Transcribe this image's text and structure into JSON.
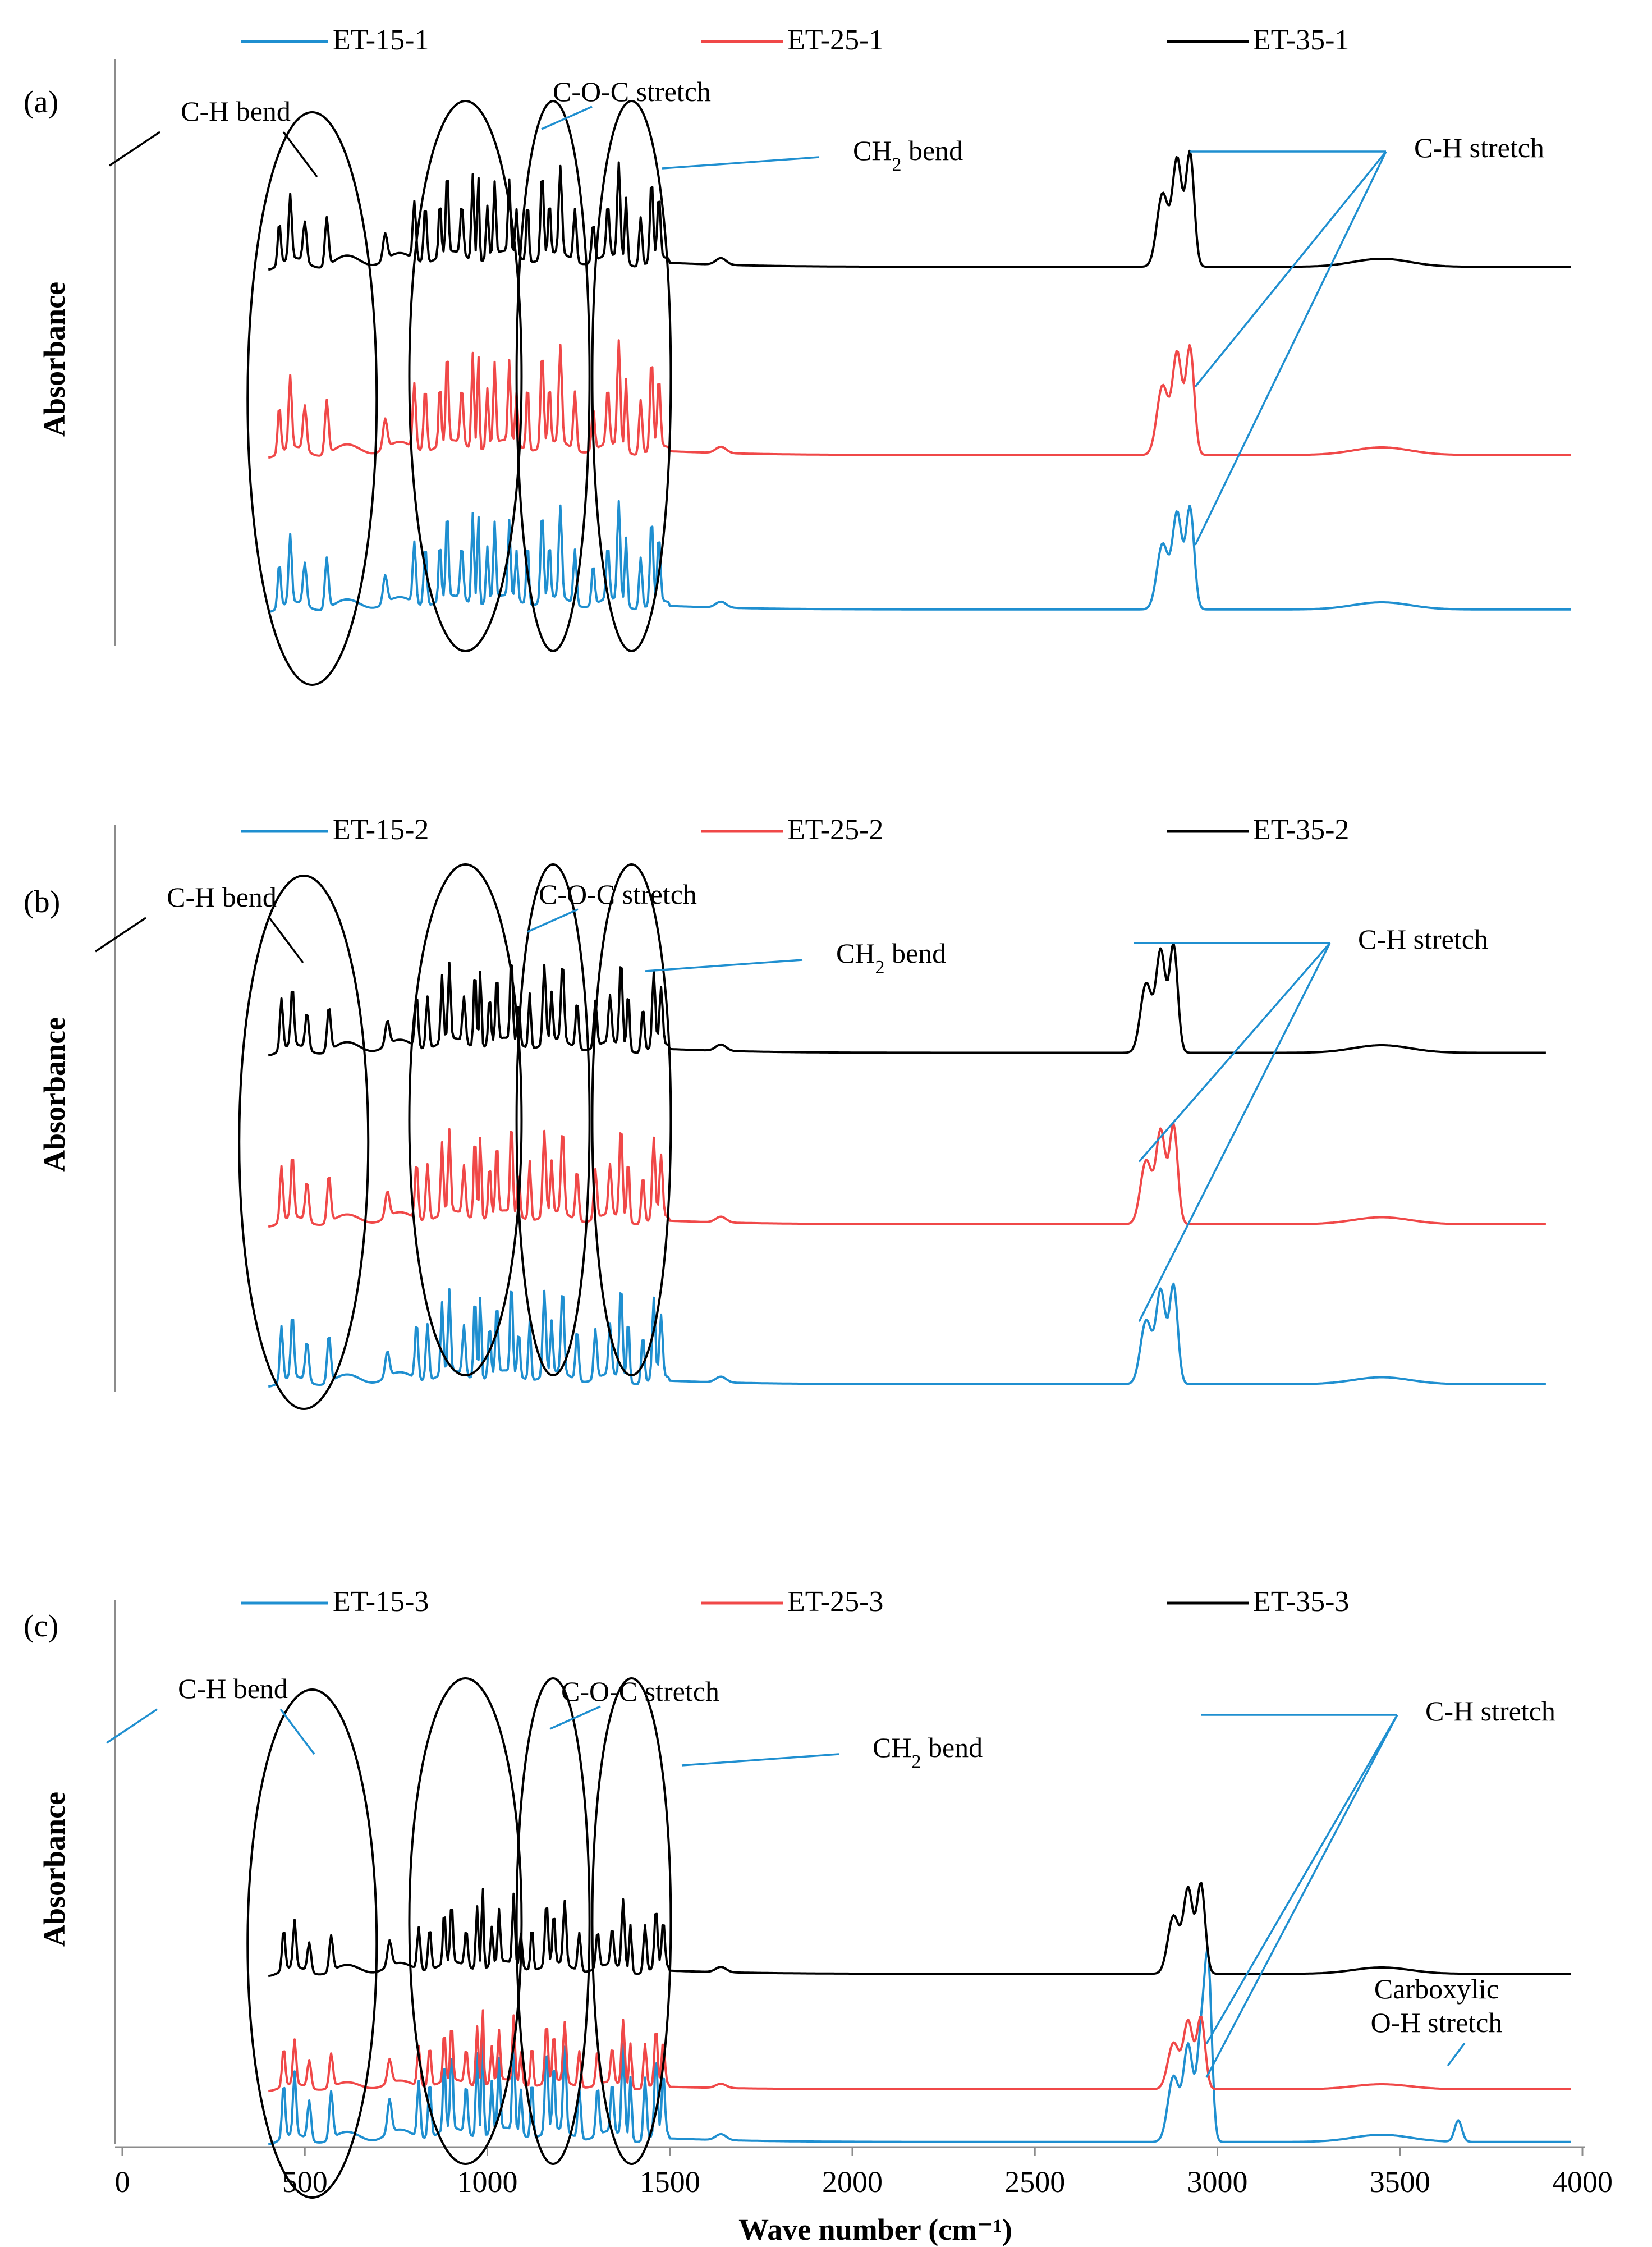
{
  "chart_data": {
    "type": "line",
    "title": "",
    "xlabel": "Wave number (cm⁻¹)",
    "ylabel": "Absorbance",
    "xlim": [
      0,
      4000
    ],
    "x_ticks": [
      "0",
      "500",
      "1000",
      "1500",
      "2000",
      "2500",
      "3000",
      "3500",
      "4000"
    ],
    "grid": false,
    "colors": {
      "blue": "#1f8fd0",
      "red": "#f04848",
      "black": "#000000"
    },
    "panels": [
      {
        "panel_label": "(a)",
        "ylabel": "Absorbance",
        "series": [
          {
            "name": "ET-15-1",
            "color": "#1f8fd0"
          },
          {
            "name": "ET-25-1",
            "color": "#f04848"
          },
          {
            "name": "ET-35-1",
            "color": "#000000"
          }
        ],
        "annotations": [
          "C-H bend",
          "C-O-C stretch",
          "CH2 bend",
          "C-H stretch"
        ]
      },
      {
        "panel_label": "(b)",
        "ylabel": "Absorbance",
        "series": [
          {
            "name": "ET-15-2",
            "color": "#1f8fd0"
          },
          {
            "name": "ET-25-2",
            "color": "#f04848"
          },
          {
            "name": "ET-35-2",
            "color": "#000000"
          }
        ],
        "annotations": [
          "C-H bend",
          "C-O-C stretch",
          "CH2 bend",
          "C-H stretch"
        ]
      },
      {
        "panel_label": "(c)",
        "ylabel": "Absorbance",
        "series": [
          {
            "name": "ET-15-3",
            "color": "#1f8fd0"
          },
          {
            "name": "ET-25-3",
            "color": "#f04848"
          },
          {
            "name": "ET-35-3",
            "color": "#000000"
          }
        ],
        "annotations": [
          "C-H bend",
          "C-O-C stretch",
          "CH2 bend",
          "C-H stretch",
          "Carboxylic",
          "O-H stretch"
        ]
      }
    ]
  }
}
